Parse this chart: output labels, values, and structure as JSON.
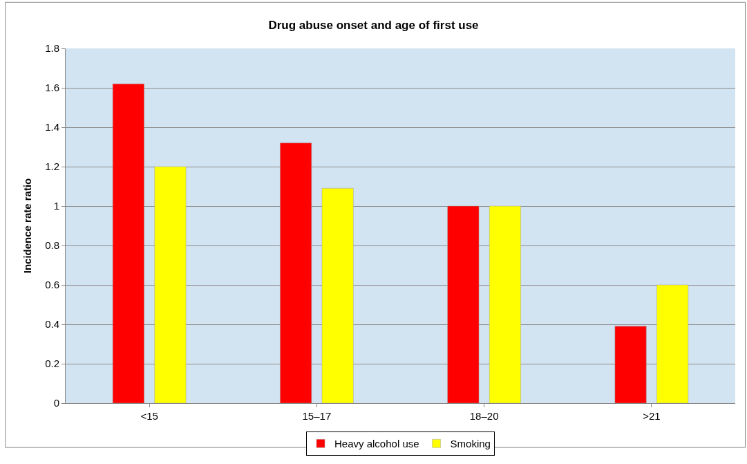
{
  "chart_data": {
    "type": "bar",
    "title": "Drug abuse onset and age of first use",
    "ylabel": "Incidence rate ratio",
    "categories": [
      "<15",
      "15–17",
      "18–20",
      ">21"
    ],
    "series": [
      {
        "name": "Heavy alcohol use",
        "color": "#ff0000",
        "values": [
          1.62,
          1.32,
          1.0,
          0.39
        ]
      },
      {
        "name": "Smoking",
        "color": "#ffff00",
        "values": [
          1.2,
          1.09,
          1.0,
          0.6
        ]
      }
    ],
    "ylim": [
      0,
      1.8
    ],
    "yticks": [
      0,
      0.2,
      0.4,
      0.6,
      0.8,
      1,
      1.2,
      1.4,
      1.6,
      1.8
    ],
    "grid": "y",
    "legend": "bottom"
  }
}
